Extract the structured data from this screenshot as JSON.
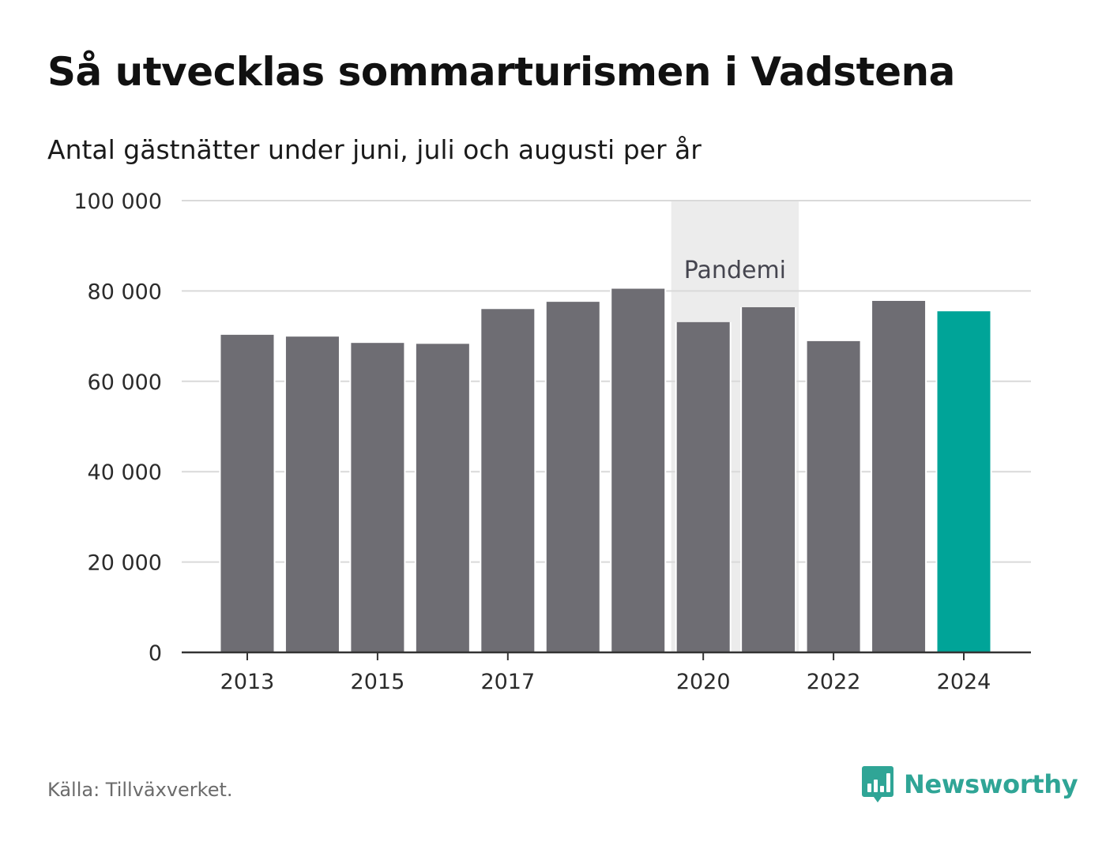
{
  "header": {
    "title": "Så utvecklas sommarturismen i Vadstena",
    "subtitle": "Antal gästnätter under juni, juli och augusti per år"
  },
  "footer": {
    "source": "Källa: Tillväxverket.",
    "brand": "Newsworthy",
    "brand_icon": "bar-chart-logo-icon"
  },
  "colors": {
    "bar": "#6e6d73",
    "highlight": "#00a498",
    "band": "#ececec",
    "grid": "#d9d9d9",
    "brand": "#2fa596"
  },
  "chart_data": {
    "type": "bar",
    "title": "Så utvecklas sommarturismen i Vadstena",
    "subtitle": "Antal gästnätter under juni, juli och augusti per år",
    "xlabel": "",
    "ylabel": "",
    "categories": [
      2013,
      2014,
      2015,
      2016,
      2017,
      2018,
      2019,
      2020,
      2021,
      2022,
      2023,
      2024
    ],
    "values": [
      70300,
      69900,
      68500,
      68300,
      76000,
      77600,
      80500,
      73100,
      76400,
      68900,
      77800,
      75500
    ],
    "highlight_category": 2024,
    "ylim": [
      0,
      100000
    ],
    "y_ticks": [
      0,
      20000,
      40000,
      60000,
      80000,
      100000
    ],
    "y_tick_labels": [
      "0",
      "20 000",
      "40 000",
      "60 000",
      "80 000",
      "100 000"
    ],
    "x_ticks": [
      2013,
      2015,
      2017,
      2020,
      2022,
      2024
    ],
    "x_tick_labels": [
      "2013",
      "2015",
      "2017",
      "2020",
      "2022",
      "2024"
    ],
    "grid": true,
    "annotation": {
      "label": "Pandemi",
      "from": 2020,
      "to": 2021
    }
  }
}
